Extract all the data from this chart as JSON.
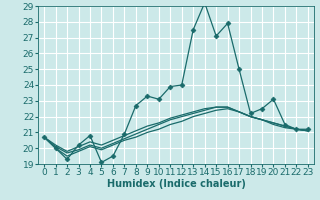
{
  "title": "",
  "xlabel": "Humidex (Indice chaleur)",
  "xlim": [
    -0.5,
    23.5
  ],
  "ylim": [
    19,
    29
  ],
  "yticks": [
    19,
    20,
    21,
    22,
    23,
    24,
    25,
    26,
    27,
    28,
    29
  ],
  "xticks": [
    0,
    1,
    2,
    3,
    4,
    5,
    6,
    7,
    8,
    9,
    10,
    11,
    12,
    13,
    14,
    15,
    16,
    17,
    18,
    19,
    20,
    21,
    22,
    23
  ],
  "background_color": "#cce9e9",
  "grid_color": "#ffffff",
  "line_color": "#1a6b6b",
  "series_main": [
    20.7,
    20.0,
    19.3,
    20.2,
    20.8,
    19.1,
    19.5,
    20.9,
    22.7,
    23.3,
    23.1,
    23.9,
    24.0,
    27.5,
    29.2,
    27.1,
    27.9,
    25.0,
    22.2,
    22.5,
    23.1,
    21.5,
    21.2,
    21.2
  ],
  "series_smooth": [
    [
      20.7,
      20.0,
      19.5,
      19.8,
      20.1,
      19.9,
      20.2,
      20.5,
      20.7,
      21.0,
      21.2,
      21.5,
      21.7,
      22.0,
      22.2,
      22.4,
      22.5,
      22.3,
      22.0,
      21.8,
      21.5,
      21.3,
      21.2,
      21.1
    ],
    [
      20.7,
      20.1,
      19.7,
      19.9,
      20.2,
      20.0,
      20.3,
      20.6,
      20.9,
      21.2,
      21.5,
      21.8,
      22.0,
      22.2,
      22.4,
      22.6,
      22.6,
      22.3,
      22.0,
      21.8,
      21.6,
      21.4,
      21.2,
      21.1
    ],
    [
      20.7,
      20.2,
      19.8,
      20.1,
      20.4,
      20.2,
      20.5,
      20.8,
      21.1,
      21.4,
      21.6,
      21.9,
      22.1,
      22.3,
      22.5,
      22.6,
      22.6,
      22.3,
      22.0,
      21.8,
      21.6,
      21.4,
      21.2,
      21.1
    ]
  ],
  "marker": "D",
  "marker_size": 2.5,
  "line_width": 0.9,
  "font_size_label": 7,
  "font_size_tick": 6.5
}
